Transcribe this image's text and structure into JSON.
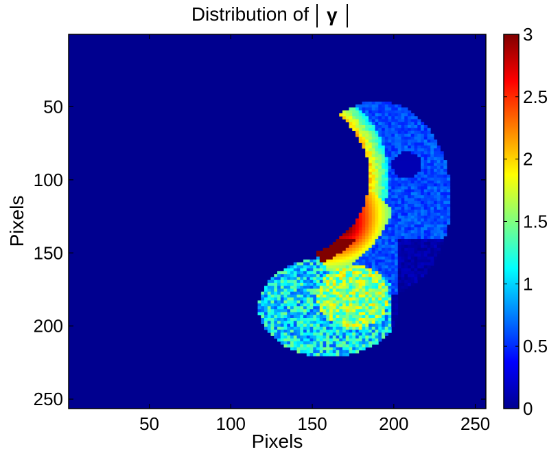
{
  "chart_data": {
    "type": "heatmap",
    "title_text": "Distribution of",
    "title_symbol": "γ",
    "xlabel": "Pixels",
    "ylabel": "Pixels",
    "xlim": [
      0.5,
      256.5
    ],
    "ylim": [
      0.5,
      256.5
    ],
    "x_ticks": [
      50,
      100,
      150,
      200,
      250
    ],
    "y_ticks": [
      50,
      100,
      150,
      200,
      250
    ],
    "colorbar": {
      "colormap": "jet",
      "range": [
        0,
        3
      ],
      "ticks": [
        "0",
        "0.5",
        "1",
        "1.5",
        "2",
        "2.5",
        "3"
      ]
    },
    "background_value": 0,
    "regions": [
      {
        "name": "crescent-outer-band",
        "x_range": [
          160,
          233
        ],
        "y_range": [
          50,
          160
        ],
        "typical_value": 0.6
      },
      {
        "name": "crescent-inner-edge",
        "x_range": [
          160,
          190
        ],
        "y_range": [
          60,
          150
        ],
        "typical_value": 1.5
      },
      {
        "name": "peak-region",
        "x_range": [
          145,
          190
        ],
        "y_range": [
          110,
          155
        ],
        "typical_value": 3.0
      },
      {
        "name": "lower-lobe",
        "x_range": [
          118,
          205
        ],
        "y_range": [
          150,
          220
        ],
        "typical_value": 1.0
      },
      {
        "name": "right-low-patch",
        "x_range": [
          200,
          230
        ],
        "y_range": [
          140,
          190
        ],
        "typical_value": 0.1
      }
    ]
  }
}
